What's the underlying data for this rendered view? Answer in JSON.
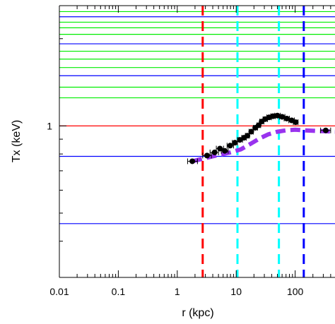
{
  "chart_data": {
    "type": "scatter",
    "xscale": "log",
    "yscale": "log",
    "xlabel": "r (kpc)",
    "ylabel": "Tx (keV)",
    "xlim": [
      0.01,
      474
    ],
    "ylim": [
      0.3,
      2.6
    ],
    "xtick_labels": [
      {
        "value": 0.01,
        "label": "0.01"
      },
      {
        "value": 0.1,
        "label": "0.1"
      },
      {
        "value": 1,
        "label": "1"
      },
      {
        "value": 10,
        "label": "10"
      },
      {
        "value": 100,
        "label": "100"
      }
    ],
    "ytick_labels": [
      {
        "value": 1,
        "label": "1"
      }
    ],
    "ytick_minor": [
      0.4,
      0.5,
      0.6,
      0.7,
      0.8,
      0.9,
      2
    ],
    "grid": false,
    "hlines": [
      {
        "y": 2.48,
        "color": "#00ee00"
      },
      {
        "y": 2.38,
        "color": "#0000ff"
      },
      {
        "y": 2.28,
        "color": "#00ee00"
      },
      {
        "y": 2.18,
        "color": "#00ee00"
      },
      {
        "y": 2.07,
        "color": "#00ee00"
      },
      {
        "y": 1.92,
        "color": "#0000ff"
      },
      {
        "y": 1.81,
        "color": "#00ee00"
      },
      {
        "y": 1.7,
        "color": "#00ee00"
      },
      {
        "y": 1.59,
        "color": "#00ee00"
      },
      {
        "y": 1.49,
        "color": "#0000ff"
      },
      {
        "y": 1.36,
        "color": "#00ee00"
      },
      {
        "y": 1.25,
        "color": "#00ee00"
      },
      {
        "y": 1.0,
        "color": "#ff0000"
      },
      {
        "y": 0.785,
        "color": "#0000ff"
      },
      {
        "y": 0.46,
        "color": "#0000ff"
      }
    ],
    "vlines": [
      {
        "x": 2.7,
        "color": "#ff0000"
      },
      {
        "x": 10.5,
        "color": "#00ffff"
      },
      {
        "x": 53,
        "color": "#00ffff"
      },
      {
        "x": 140,
        "color": "#0000ff"
      }
    ],
    "series": [
      {
        "kind": "points",
        "color": "#000000",
        "points": [
          {
            "x": 1.8,
            "y": 0.755,
            "xerr": [
              1.5,
              2.2
            ]
          },
          {
            "x": 3.2,
            "y": 0.79,
            "xerr": [
              2.7,
              3.8
            ]
          },
          {
            "x": 4.3,
            "y": 0.81,
            "xerr": [
              3.6,
              5.0
            ]
          },
          {
            "x": 5.3,
            "y": 0.835,
            "xerr": [
              4.6,
              6.1
            ]
          },
          {
            "x": 6.4,
            "y": 0.82,
            "xerr": [
              5.6,
              7.3
            ]
          },
          {
            "x": 7.9,
            "y": 0.855,
            "xerr": [
              7.0,
              9.0
            ]
          },
          {
            "x": 9.5,
            "y": 0.875,
            "xerr": [
              8.6,
              10.5
            ]
          },
          {
            "x": 11.5,
            "y": 0.895,
            "xerr": [
              10.5,
              12.8
            ]
          },
          {
            "x": 13.5,
            "y": 0.91,
            "xerr": [
              12.4,
              14.8
            ]
          },
          {
            "x": 15.5,
            "y": 0.925,
            "xerr": [
              14.3,
              16.8
            ]
          },
          {
            "x": 18,
            "y": 0.955,
            "xerr": [
              16.5,
              19.5
            ]
          },
          {
            "x": 21,
            "y": 0.985,
            "xerr": [
              19.5,
              23
            ]
          },
          {
            "x": 24,
            "y": 1.005,
            "xerr": [
              22.5,
              26
            ]
          },
          {
            "x": 27,
            "y": 1.035,
            "xerr": [
              25,
              29.5
            ]
          },
          {
            "x": 31,
            "y": 1.055,
            "xerr": [
              28.5,
              34
            ]
          },
          {
            "x": 36,
            "y": 1.07,
            "xerr": [
              33,
              39.5
            ]
          },
          {
            "x": 42,
            "y": 1.08,
            "xerr": [
              38.5,
              46
            ]
          },
          {
            "x": 50,
            "y": 1.085,
            "xerr": [
              45,
              56
            ]
          },
          {
            "x": 60,
            "y": 1.075,
            "xerr": [
              54,
              67
            ]
          },
          {
            "x": 72,
            "y": 1.06,
            "xerr": [
              65,
              80
            ]
          },
          {
            "x": 87,
            "y": 1.045,
            "xerr": [
              78,
              97
            ]
          },
          {
            "x": 102,
            "y": 1.03,
            "xerr": [
              93,
              112
            ]
          },
          {
            "x": 330,
            "y": 0.965,
            "xerr": [
              270,
              400
            ]
          }
        ]
      },
      {
        "kind": "line",
        "style": "dashed",
        "color": "#9933ee",
        "points": [
          {
            "x": 1.8,
            "y": 0.755
          },
          {
            "x": 4,
            "y": 0.785
          },
          {
            "x": 8,
            "y": 0.81
          },
          {
            "x": 12,
            "y": 0.83
          },
          {
            "x": 18,
            "y": 0.87
          },
          {
            "x": 25,
            "y": 0.905
          },
          {
            "x": 35,
            "y": 0.935
          },
          {
            "x": 50,
            "y": 0.955
          },
          {
            "x": 70,
            "y": 0.965
          },
          {
            "x": 100,
            "y": 0.97
          },
          {
            "x": 150,
            "y": 0.965
          },
          {
            "x": 250,
            "y": 0.96
          },
          {
            "x": 474,
            "y": 0.955
          }
        ]
      }
    ]
  }
}
